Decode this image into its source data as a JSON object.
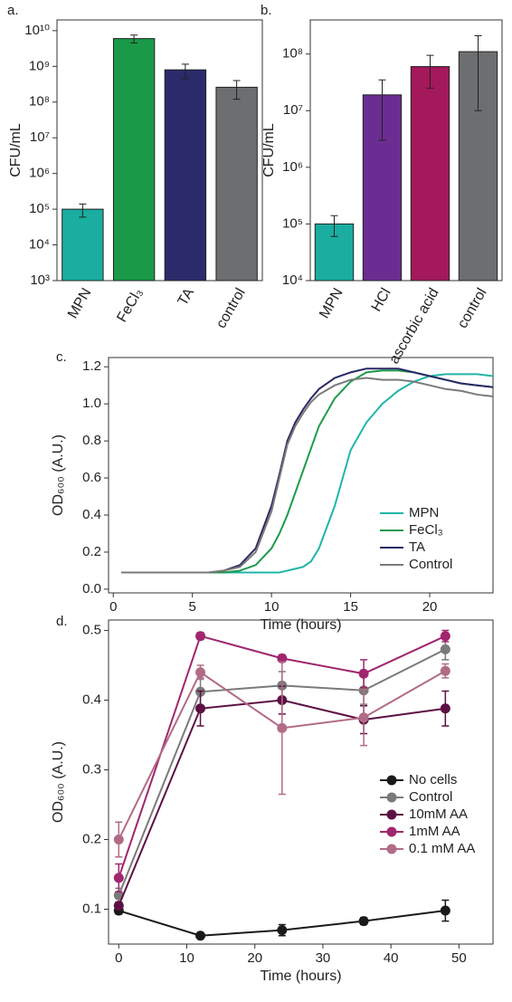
{
  "chart_data": [
    {
      "type": "bar",
      "panel": "a.",
      "ylabel": "CFU/mL",
      "log": true,
      "categories": [
        "MPN",
        "FeCl₃",
        "TA",
        "control"
      ],
      "values": [
        100000,
        6000000000,
        800000000,
        260000000
      ],
      "errors": [
        40000,
        1500000000,
        350000000,
        140000000
      ],
      "colors": [
        "#1aada0",
        "#1a9a48",
        "#2b2a6b",
        "#6d6e70"
      ],
      "ylim": [
        1000,
        20000000000
      ],
      "yticks": [
        {
          "value": 1000,
          "label": "10³"
        },
        {
          "value": 10000,
          "label": "10⁴"
        },
        {
          "value": 100000,
          "label": "10⁵"
        },
        {
          "value": 1000000,
          "label": "10⁶"
        },
        {
          "value": 10000000,
          "label": "10⁷"
        },
        {
          "value": 100000000,
          "label": "10⁸"
        },
        {
          "value": 1000000000,
          "label": "10⁹"
        },
        {
          "value": 10000000000,
          "label": "10¹⁰"
        }
      ]
    },
    {
      "type": "bar",
      "panel": "b.",
      "ylabel": "CFU/mL",
      "log": true,
      "categories": [
        "MPN",
        "HCl",
        "ascorbic acid",
        "control"
      ],
      "values": [
        100000,
        19000000,
        60000000,
        110000000
      ],
      "errors": [
        40000,
        16000000,
        35000000,
        100000000
      ],
      "colors": [
        "#1aada0",
        "#6a2d91",
        "#a3195b",
        "#6d6e70"
      ],
      "ylim": [
        10000,
        400000000
      ],
      "yticks": [
        {
          "value": 10000,
          "label": "10⁴"
        },
        {
          "value": 100000,
          "label": "10⁵"
        },
        {
          "value": 1000000,
          "label": "10⁶"
        },
        {
          "value": 10000000,
          "label": "10⁷"
        },
        {
          "value": 100000000,
          "label": "10⁸"
        }
      ]
    },
    {
      "type": "line",
      "panel": "c.",
      "ylabel": "OD₆₀₀ (A.U.)",
      "xlabel": "Time (hours)",
      "legend": "lower right",
      "x": [
        0.5,
        2,
        4,
        6,
        7,
        8,
        9,
        10,
        10.5,
        11,
        11.5,
        12,
        12.5,
        13,
        14,
        15,
        16,
        17,
        18,
        19,
        20,
        21,
        22,
        23,
        24
      ],
      "series": [
        {
          "name": "MPN",
          "color": "#1fb5a8",
          "values": [
            0.09,
            0.09,
            0.09,
            0.09,
            0.09,
            0.09,
            0.09,
            0.09,
            0.09,
            0.1,
            0.11,
            0.12,
            0.15,
            0.22,
            0.45,
            0.75,
            0.9,
            1.0,
            1.07,
            1.12,
            1.15,
            1.16,
            1.16,
            1.16,
            1.15
          ]
        },
        {
          "name": "FeCl₃",
          "color": "#1e9a4c",
          "values": [
            0.09,
            0.09,
            0.09,
            0.09,
            0.09,
            0.1,
            0.13,
            0.22,
            0.3,
            0.4,
            0.52,
            0.64,
            0.76,
            0.88,
            1.03,
            1.12,
            1.17,
            1.18,
            1.18,
            1.17,
            1.15,
            1.13,
            1.11,
            1.1,
            1.09
          ]
        },
        {
          "name": "TA",
          "color": "#2a2a66",
          "values": [
            0.09,
            0.09,
            0.09,
            0.09,
            0.1,
            0.13,
            0.22,
            0.45,
            0.62,
            0.8,
            0.9,
            0.97,
            1.03,
            1.08,
            1.14,
            1.17,
            1.19,
            1.19,
            1.19,
            1.17,
            1.15,
            1.13,
            1.11,
            1.1,
            1.09
          ]
        },
        {
          "name": "Control",
          "color": "#7a7a7a",
          "values": [
            0.09,
            0.09,
            0.09,
            0.09,
            0.1,
            0.12,
            0.2,
            0.42,
            0.6,
            0.78,
            0.88,
            0.95,
            1.01,
            1.05,
            1.1,
            1.13,
            1.14,
            1.13,
            1.13,
            1.12,
            1.1,
            1.08,
            1.07,
            1.05,
            1.04
          ]
        }
      ],
      "xlim": [
        -0.3,
        24
      ],
      "xticks": [
        0,
        5,
        10,
        15,
        20
      ],
      "ylim": [
        -0.02,
        1.25
      ],
      "yticks": [
        {
          "value": 0,
          "label": "0.0"
        },
        0.2,
        0.4,
        0.6,
        0.8,
        {
          "value": 1,
          "label": "1.0"
        },
        1.2
      ]
    },
    {
      "type": "line",
      "panel": "d.",
      "ylabel": "OD₆₀₀ (A.U.)",
      "xlabel": "Time (hours)",
      "legend": "center right",
      "markers": true,
      "x": [
        0,
        12,
        24,
        36,
        48
      ],
      "series": [
        {
          "name": "No cells",
          "color": "#1a1a1a",
          "values": [
            0.098,
            0.062,
            0.07,
            0.083,
            0.098
          ],
          "errors": [
            0.005,
            0.003,
            0.008,
            0.005,
            0.015
          ]
        },
        {
          "name": "Control",
          "color": "#7a7a7a",
          "values": [
            0.12,
            0.412,
            0.421,
            0.414,
            0.473
          ],
          "errors": [
            0.01,
            0.02,
            0.02,
            0.02,
            0.015
          ]
        },
        {
          "name": "10mM AA",
          "color": "#5c1044",
          "values": [
            0.105,
            0.388,
            0.4,
            0.372,
            0.388
          ],
          "errors": [
            0.005,
            0.025,
            0.02,
            0.02,
            0.025
          ]
        },
        {
          "name": "1mM AA",
          "color": "#a0266e",
          "values": [
            0.145,
            0.492,
            0.46,
            0.438,
            0.492
          ],
          "errors": [
            0.02,
            0.005,
            0.005,
            0.02,
            0.008
          ]
        },
        {
          "name": "0.1 mM AA",
          "color": "#b26b86",
          "values": [
            0.2,
            0.44,
            0.36,
            0.375,
            0.442
          ],
          "errors": [
            0.025,
            0.01,
            0.095,
            0.04,
            0.01
          ]
        }
      ],
      "xlim": [
        -1.5,
        55
      ],
      "xticks": [
        0,
        10,
        20,
        30,
        40,
        50
      ],
      "ylim": [
        0.05,
        0.515
      ],
      "yticks": [
        0.1,
        0.2,
        0.3,
        0.4,
        0.5
      ]
    }
  ]
}
